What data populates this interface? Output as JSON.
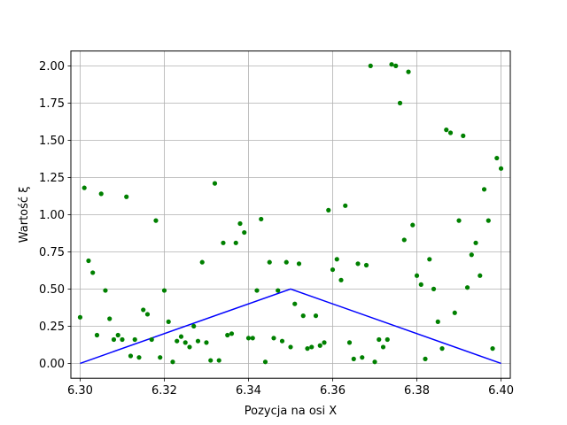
{
  "chart_data": {
    "type": "scatter",
    "title": "",
    "xlabel": "Pozycja na osi X",
    "ylabel": "Wartość ξ",
    "xlim": [
      6.2978,
      6.4022
    ],
    "ylim": [
      -0.1,
      2.1
    ],
    "x_ticks": [
      "6.30",
      "6.32",
      "6.34",
      "6.36",
      "6.38",
      "6.40"
    ],
    "y_ticks": [
      "0.00",
      "0.25",
      "0.50",
      "0.75",
      "1.00",
      "1.25",
      "1.50",
      "1.75",
      "2.00"
    ],
    "grid": true,
    "series": [
      {
        "kind": "scatter",
        "color": "#008000",
        "points": [
          [
            6.3,
            0.31
          ],
          [
            6.301,
            1.18
          ],
          [
            6.302,
            0.69
          ],
          [
            6.303,
            0.61
          ],
          [
            6.304,
            0.19
          ],
          [
            6.305,
            1.14
          ],
          [
            6.306,
            0.49
          ],
          [
            6.307,
            0.3
          ],
          [
            6.308,
            0.16
          ],
          [
            6.309,
            0.19
          ],
          [
            6.31,
            0.16
          ],
          [
            6.311,
            1.12
          ],
          [
            6.312,
            0.05
          ],
          [
            6.313,
            0.16
          ],
          [
            6.314,
            0.04
          ],
          [
            6.315,
            0.36
          ],
          [
            6.316,
            0.33
          ],
          [
            6.317,
            0.16
          ],
          [
            6.318,
            0.96
          ],
          [
            6.319,
            0.04
          ],
          [
            6.32,
            0.49
          ],
          [
            6.321,
            0.28
          ],
          [
            6.322,
            0.01
          ],
          [
            6.323,
            0.15
          ],
          [
            6.324,
            0.18
          ],
          [
            6.325,
            0.14
          ],
          [
            6.326,
            0.11
          ],
          [
            6.327,
            0.25
          ],
          [
            6.328,
            0.15
          ],
          [
            6.329,
            0.68
          ],
          [
            6.33,
            0.14
          ],
          [
            6.331,
            0.02
          ],
          [
            6.332,
            1.21
          ],
          [
            6.333,
            0.02
          ],
          [
            6.334,
            0.81
          ],
          [
            6.335,
            0.19
          ],
          [
            6.336,
            0.2
          ],
          [
            6.337,
            0.81
          ],
          [
            6.338,
            0.94
          ],
          [
            6.339,
            0.88
          ],
          [
            6.34,
            0.17
          ],
          [
            6.341,
            0.17
          ],
          [
            6.342,
            0.49
          ],
          [
            6.343,
            0.97
          ],
          [
            6.344,
            0.01
          ],
          [
            6.345,
            0.68
          ],
          [
            6.346,
            0.17
          ],
          [
            6.347,
            0.49
          ],
          [
            6.348,
            0.15
          ],
          [
            6.349,
            0.68
          ],
          [
            6.35,
            0.11
          ],
          [
            6.351,
            0.4
          ],
          [
            6.352,
            0.67
          ],
          [
            6.353,
            0.32
          ],
          [
            6.354,
            0.1
          ],
          [
            6.355,
            0.11
          ],
          [
            6.356,
            0.32
          ],
          [
            6.357,
            0.12
          ],
          [
            6.358,
            0.14
          ],
          [
            6.359,
            1.03
          ],
          [
            6.36,
            0.63
          ],
          [
            6.361,
            0.7
          ],
          [
            6.362,
            0.56
          ],
          [
            6.363,
            1.06
          ],
          [
            6.364,
            0.14
          ],
          [
            6.365,
            0.03
          ],
          [
            6.366,
            0.67
          ],
          [
            6.367,
            0.04
          ],
          [
            6.368,
            0.66
          ],
          [
            6.369,
            2.0
          ],
          [
            6.37,
            0.01
          ],
          [
            6.371,
            0.16
          ],
          [
            6.372,
            0.11
          ],
          [
            6.373,
            0.16
          ],
          [
            6.374,
            2.01
          ],
          [
            6.375,
            2.0
          ],
          [
            6.376,
            1.75
          ],
          [
            6.377,
            0.83
          ],
          [
            6.378,
            1.96
          ],
          [
            6.379,
            0.93
          ],
          [
            6.38,
            0.59
          ],
          [
            6.381,
            0.53
          ],
          [
            6.382,
            0.03
          ],
          [
            6.383,
            0.7
          ],
          [
            6.384,
            0.5
          ],
          [
            6.385,
            0.28
          ],
          [
            6.386,
            0.1
          ],
          [
            6.387,
            1.57
          ],
          [
            6.388,
            1.55
          ],
          [
            6.389,
            0.34
          ],
          [
            6.39,
            0.96
          ],
          [
            6.391,
            1.53
          ],
          [
            6.392,
            0.51
          ],
          [
            6.393,
            0.73
          ],
          [
            6.394,
            0.81
          ],
          [
            6.395,
            0.59
          ],
          [
            6.396,
            1.17
          ],
          [
            6.397,
            0.96
          ],
          [
            6.398,
            0.1
          ],
          [
            6.399,
            1.38
          ],
          [
            6.4,
            1.31
          ]
        ]
      },
      {
        "kind": "line",
        "color": "#0000ff",
        "points": [
          [
            6.3,
            0.0
          ],
          [
            6.35,
            0.5
          ],
          [
            6.4,
            0.0
          ]
        ]
      }
    ]
  }
}
